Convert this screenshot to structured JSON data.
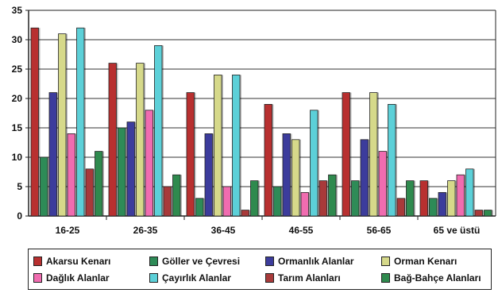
{
  "chart_data": {
    "type": "bar",
    "title": "",
    "xlabel": "",
    "ylabel": "",
    "ylim": [
      0,
      35
    ],
    "yticks": [
      0,
      5,
      10,
      15,
      20,
      25,
      30,
      35
    ],
    "grid": true,
    "legend_position": "bottom",
    "categories": [
      "16-25",
      "26-35",
      "36-45",
      "46-55",
      "56-65",
      "65 ve üstü"
    ],
    "series": [
      {
        "name": "Akarsu Kenarı",
        "color": "#b83030",
        "values": [
          32,
          26,
          21,
          19,
          21,
          6
        ]
      },
      {
        "name": "Göller ve Çevresi",
        "color": "#2e8b57",
        "values": [
          10,
          15,
          3,
          5,
          6,
          3
        ]
      },
      {
        "name": "Ormanlık Alanlar",
        "color": "#3c3c9c",
        "values": [
          21,
          16,
          14,
          14,
          13,
          4
        ]
      },
      {
        "name": "Orman Kenarı",
        "color": "#d6d98a",
        "values": [
          31,
          26,
          24,
          13,
          21,
          6
        ]
      },
      {
        "name": "Dağlık Alanlar",
        "color": "#f06cb0",
        "values": [
          14,
          18,
          5,
          4,
          11,
          7
        ]
      },
      {
        "name": "Çayırlık Alanlar",
        "color": "#5cd0d8",
        "values": [
          32,
          29,
          24,
          18,
          19,
          8
        ]
      },
      {
        "name": "Tarım Alanları",
        "color": "#a83a3a",
        "values": [
          8,
          5,
          1,
          6,
          3,
          1
        ]
      },
      {
        "name": "Bağ-Bahçe Alanları",
        "color": "#2f8a4e",
        "values": [
          11,
          7,
          6,
          7,
          6,
          1
        ]
      }
    ]
  }
}
